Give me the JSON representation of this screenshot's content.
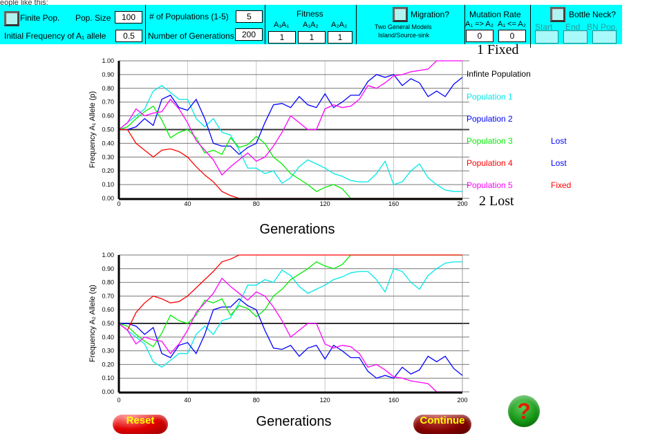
{
  "top_cut_text": "eople like this:",
  "controls": {
    "finite_pop_label": "Finite Pop.",
    "pop_size_label": "Pop. Size",
    "pop_size": "100",
    "init_freq_label": "Initial  Frequency  of A₁ allele",
    "init_freq": "0.5",
    "num_pops_label": "# of Populations (1-5)",
    "num_pops": "5",
    "num_gens_label": "Number of Generations",
    "num_gens": "200",
    "fitness_label": "Fitness",
    "fit_labels": [
      "A₁A₁",
      "A₁A₂",
      "A₂A₂"
    ],
    "fit_values": [
      "1",
      "1",
      "1"
    ],
    "migration_label": "Migration?",
    "migration_note1": "Two General Models",
    "migration_note2": "Island/Source-sink",
    "mutation_label": "Mutation Rate",
    "mut_fwd_label": "A₁ => A₂",
    "mut_rev_label": "A₁ <= A₂",
    "mut_values": [
      "0",
      "0"
    ],
    "bottleneck_label": "Bottle Neck?",
    "bn_labels": [
      "Start",
      "End",
      "BN Pop."
    ]
  },
  "legend": {
    "fixed_marker": "1   Fixed",
    "lost_marker": "2   Lost",
    "items": [
      {
        "label": "Infinte Population",
        "color": "#000000",
        "status": ""
      },
      {
        "label": "Population 1",
        "color": "#00e8e8",
        "status": ""
      },
      {
        "label": "Population 2",
        "color": "#0000ff",
        "status": ""
      },
      {
        "label": "Population 3",
        "color": "#00ee00",
        "status": "Lost",
        "status_color": "#0000ff"
      },
      {
        "label": "Population 4",
        "color": "#ff0000",
        "status": "Lost",
        "status_color": "#0000ff"
      },
      {
        "label": "Population 5",
        "color": "#ff00ff",
        "status": "Fixed",
        "status_color": "#ff0000"
      }
    ]
  },
  "buttons": {
    "reset": "Reset",
    "continue": "Continue",
    "help": "?"
  },
  "chart_data": [
    {
      "type": "line",
      "xlabel": "Generations",
      "ylabel": "Frequency A₁ Allele (p)",
      "xlim": [
        0,
        200
      ],
      "ylim": [
        0,
        1
      ],
      "xticks": [
        "0",
        "40",
        "80",
        "120",
        "160",
        "200"
      ],
      "yticks": [
        "0.00",
        "0.10",
        "0.20",
        "0.30",
        "0.40",
        "0.50",
        "0.60",
        "0.70",
        "0.80",
        "0.90",
        "1.00"
      ],
      "x_step": 5,
      "infinite": 0.5,
      "series": [
        {
          "name": "Population 1",
          "color": "#00e8e8",
          "values": [
            0.5,
            0.55,
            0.6,
            0.65,
            0.78,
            0.82,
            0.77,
            0.72,
            0.72,
            0.58,
            0.52,
            0.58,
            0.48,
            0.46,
            0.35,
            0.22,
            0.22,
            0.18,
            0.2,
            0.11,
            0.15,
            0.23,
            0.28,
            0.25,
            0.22,
            0.18,
            0.16,
            0.13,
            0.12,
            0.12,
            0.18,
            0.27,
            0.1,
            0.12,
            0.2,
            0.25,
            0.15,
            0.1,
            0.06,
            0.05,
            0.05
          ]
        },
        {
          "name": "Population 2",
          "color": "#0000ff",
          "values": [
            0.5,
            0.5,
            0.52,
            0.58,
            0.53,
            0.72,
            0.75,
            0.66,
            0.64,
            0.72,
            0.58,
            0.4,
            0.38,
            0.38,
            0.32,
            0.37,
            0.4,
            0.55,
            0.68,
            0.69,
            0.66,
            0.74,
            0.68,
            0.66,
            0.76,
            0.66,
            0.7,
            0.75,
            0.75,
            0.85,
            0.9,
            0.88,
            0.9,
            0.82,
            0.87,
            0.84,
            0.74,
            0.78,
            0.74,
            0.83,
            0.88
          ]
        },
        {
          "name": "Population 3",
          "color": "#00ee00",
          "values": [
            0.5,
            0.52,
            0.58,
            0.63,
            0.67,
            0.57,
            0.44,
            0.48,
            0.5,
            0.44,
            0.33,
            0.35,
            0.32,
            0.44,
            0.37,
            0.39,
            0.45,
            0.4,
            0.3,
            0.25,
            0.18,
            0.14,
            0.1,
            0.05,
            0.08,
            0.1,
            0.07,
            0,
            0,
            0,
            0,
            0,
            0,
            0,
            0,
            0,
            0,
            0,
            0,
            0,
            0
          ]
        },
        {
          "name": "Population 4",
          "color": "#ff0000",
          "values": [
            0.5,
            0.5,
            0.4,
            0.35,
            0.3,
            0.35,
            0.36,
            0.34,
            0.3,
            0.23,
            0.17,
            0.12,
            0.05,
            0.02,
            0,
            0,
            0,
            0,
            0,
            0,
            0,
            0,
            0,
            0,
            0,
            0,
            0,
            0,
            0,
            0,
            0,
            0,
            0,
            0,
            0,
            0,
            0,
            0,
            0,
            0,
            0
          ]
        },
        {
          "name": "Population 5",
          "color": "#ff00ff",
          "values": [
            0.5,
            0.55,
            0.65,
            0.6,
            0.62,
            0.63,
            0.72,
            0.65,
            0.55,
            0.42,
            0.35,
            0.28,
            0.17,
            0.23,
            0.28,
            0.33,
            0.27,
            0.3,
            0.38,
            0.48,
            0.6,
            0.55,
            0.5,
            0.5,
            0.65,
            0.68,
            0.66,
            0.67,
            0.72,
            0.82,
            0.8,
            0.84,
            0.89,
            0.9,
            0.92,
            0.93,
            0.94,
            1,
            1,
            1,
            1
          ]
        }
      ]
    },
    {
      "type": "line",
      "xlabel": "Generations",
      "ylabel": "Frequency A₂ Allele (q)",
      "xlim": [
        0,
        200
      ],
      "ylim": [
        0,
        1
      ],
      "xticks": [
        "0",
        "40",
        "80",
        "120",
        "160",
        "200"
      ],
      "yticks": [
        "0.00",
        "0.10",
        "0.20",
        "0.30",
        "0.40",
        "0.50",
        "0.60",
        "0.70",
        "0.80",
        "0.90",
        "1.00"
      ],
      "x_step": 5,
      "infinite": 0.5,
      "series": [
        {
          "name": "Population 1",
          "color": "#00e8e8",
          "values": [
            0.5,
            0.45,
            0.4,
            0.35,
            0.22,
            0.18,
            0.23,
            0.28,
            0.28,
            0.42,
            0.48,
            0.42,
            0.52,
            0.54,
            0.65,
            0.78,
            0.78,
            0.82,
            0.8,
            0.89,
            0.85,
            0.77,
            0.72,
            0.75,
            0.78,
            0.82,
            0.84,
            0.87,
            0.88,
            0.88,
            0.82,
            0.73,
            0.9,
            0.88,
            0.8,
            0.75,
            0.85,
            0.9,
            0.94,
            0.95,
            0.95
          ]
        },
        {
          "name": "Population 2",
          "color": "#0000ff",
          "values": [
            0.5,
            0.5,
            0.48,
            0.42,
            0.47,
            0.28,
            0.25,
            0.34,
            0.36,
            0.28,
            0.42,
            0.6,
            0.62,
            0.62,
            0.68,
            0.63,
            0.6,
            0.45,
            0.32,
            0.31,
            0.34,
            0.26,
            0.32,
            0.34,
            0.24,
            0.34,
            0.3,
            0.25,
            0.25,
            0.15,
            0.1,
            0.12,
            0.1,
            0.18,
            0.13,
            0.16,
            0.26,
            0.22,
            0.26,
            0.17,
            0.12
          ]
        },
        {
          "name": "Population 3",
          "color": "#00ee00",
          "values": [
            0.5,
            0.48,
            0.42,
            0.37,
            0.33,
            0.43,
            0.56,
            0.52,
            0.5,
            0.56,
            0.67,
            0.65,
            0.68,
            0.56,
            0.63,
            0.61,
            0.55,
            0.6,
            0.7,
            0.75,
            0.82,
            0.86,
            0.9,
            0.95,
            0.92,
            0.9,
            0.93,
            1,
            1,
            1,
            1,
            1,
            1,
            1,
            1,
            1,
            1,
            1,
            1,
            1,
            1
          ]
        },
        {
          "name": "Population 4",
          "color": "#ff0000",
          "values": [
            0.5,
            0.45,
            0.58,
            0.65,
            0.7,
            0.68,
            0.65,
            0.66,
            0.7,
            0.76,
            0.82,
            0.88,
            0.95,
            0.97,
            1,
            1,
            1,
            1,
            1,
            1,
            1,
            1,
            1,
            1,
            1,
            1,
            1,
            1,
            1,
            1,
            1,
            1,
            1,
            1,
            1,
            1,
            1,
            1,
            1,
            1,
            1
          ]
        },
        {
          "name": "Population 5",
          "color": "#ff00ff",
          "values": [
            0.5,
            0.45,
            0.35,
            0.4,
            0.38,
            0.37,
            0.28,
            0.35,
            0.45,
            0.58,
            0.65,
            0.72,
            0.83,
            0.77,
            0.72,
            0.67,
            0.73,
            0.7,
            0.62,
            0.52,
            0.4,
            0.45,
            0.5,
            0.5,
            0.35,
            0.32,
            0.34,
            0.33,
            0.28,
            0.18,
            0.2,
            0.16,
            0.11,
            0.1,
            0.08,
            0.07,
            0.06,
            0,
            0,
            0,
            0
          ]
        }
      ]
    }
  ]
}
